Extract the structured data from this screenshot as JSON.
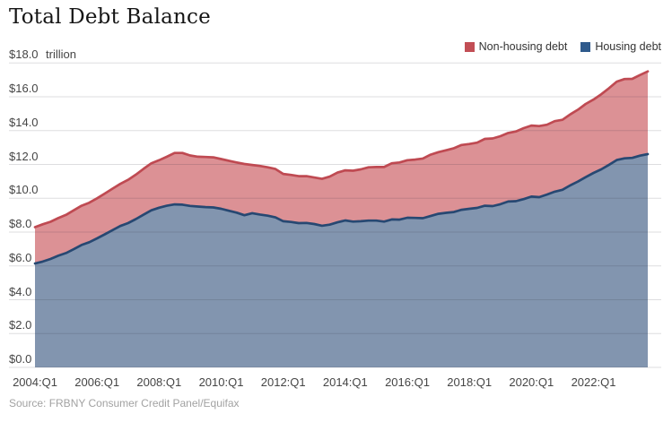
{
  "header": {
    "title": "Total Debt Balance"
  },
  "y_axis": {
    "unit_label": "trillion",
    "ticks": [
      {
        "label": "$18.0",
        "value": 18
      },
      {
        "label": "$16.0",
        "value": 16
      },
      {
        "label": "$14.0",
        "value": 14
      },
      {
        "label": "$12.0",
        "value": 12
      },
      {
        "label": "$10.0",
        "value": 10
      },
      {
        "label": "$8.0",
        "value": 8
      },
      {
        "label": "$6.0",
        "value": 6
      },
      {
        "label": "$4.0",
        "value": 4
      },
      {
        "label": "$2.0",
        "value": 2
      },
      {
        "label": "$0.0",
        "value": 0
      }
    ]
  },
  "x_axis": {
    "ticks": [
      {
        "label": "2004:Q1",
        "index": 0
      },
      {
        "label": "2006:Q1",
        "index": 8
      },
      {
        "label": "2008:Q1",
        "index": 16
      },
      {
        "label": "2010:Q1",
        "index": 24
      },
      {
        "label": "2012:Q1",
        "index": 32
      },
      {
        "label": "2014:Q1",
        "index": 40
      },
      {
        "label": "2016:Q1",
        "index": 48
      },
      {
        "label": "2018:Q1",
        "index": 56
      },
      {
        "label": "2020:Q1",
        "index": 64
      },
      {
        "label": "2022:Q1",
        "index": 72
      }
    ]
  },
  "legend": {
    "items": [
      {
        "label": "Non-housing debt",
        "color": "#c24e55"
      },
      {
        "label": "Housing debt",
        "color": "#2f5a8c"
      }
    ]
  },
  "source": "Source: FRBNY Consumer Credit Panel/Equifax",
  "chart_data": {
    "type": "area",
    "stacked": true,
    "title": "Total Debt Balance",
    "ylabel": "USD trillions",
    "ylim": [
      0,
      18
    ],
    "grid": true,
    "legend_position": "top-right",
    "x_start": "2004:Q1",
    "x_end": "2023:Q4",
    "x_frequency": "quarterly",
    "series": [
      {
        "name": "Housing debt",
        "fill": "#8295af",
        "line": "#274872",
        "values": [
          6.14,
          6.26,
          6.41,
          6.6,
          6.76,
          6.99,
          7.24,
          7.4,
          7.63,
          7.87,
          8.12,
          8.36,
          8.53,
          8.77,
          9.03,
          9.29,
          9.44,
          9.56,
          9.64,
          9.62,
          9.55,
          9.51,
          9.48,
          9.46,
          9.38,
          9.26,
          9.15,
          9.0,
          9.12,
          9.04,
          8.97,
          8.87,
          8.64,
          8.6,
          8.53,
          8.54,
          8.48,
          8.38,
          8.44,
          8.58,
          8.69,
          8.62,
          8.64,
          8.68,
          8.68,
          8.62,
          8.75,
          8.74,
          8.85,
          8.84,
          8.82,
          8.95,
          9.08,
          9.14,
          9.19,
          9.32,
          9.38,
          9.43,
          9.56,
          9.54,
          9.65,
          9.81,
          9.83,
          9.95,
          10.1,
          10.07,
          10.22,
          10.39,
          10.5,
          10.76,
          10.99,
          11.25,
          11.5,
          11.71,
          11.98,
          12.26,
          12.36,
          12.39,
          12.52,
          12.61
        ]
      },
      {
        "name": "Non-housing debt",
        "fill": "#dc9195",
        "line": "#bf4a52",
        "values": [
          2.15,
          2.2,
          2.2,
          2.23,
          2.26,
          2.3,
          2.32,
          2.34,
          2.37,
          2.41,
          2.45,
          2.49,
          2.56,
          2.63,
          2.71,
          2.78,
          2.81,
          2.9,
          3.04,
          3.06,
          2.98,
          2.95,
          2.96,
          2.96,
          2.94,
          2.96,
          2.97,
          3.03,
          2.85,
          2.87,
          2.86,
          2.86,
          2.8,
          2.78,
          2.78,
          2.77,
          2.75,
          2.77,
          2.84,
          2.94,
          2.96,
          3.01,
          3.07,
          3.15,
          3.17,
          3.23,
          3.32,
          3.38,
          3.4,
          3.45,
          3.53,
          3.63,
          3.65,
          3.7,
          3.77,
          3.83,
          3.83,
          3.86,
          3.95,
          4.0,
          4.02,
          4.05,
          4.12,
          4.2,
          4.2,
          4.2,
          4.13,
          4.17,
          4.14,
          4.2,
          4.25,
          4.33,
          4.34,
          4.44,
          4.53,
          4.64,
          4.69,
          4.67,
          4.77,
          4.89
        ]
      }
    ],
    "total_debt": [
      8.29,
      8.46,
      8.61,
      8.83,
      9.02,
      9.29,
      9.56,
      9.74,
      10.0,
      10.28,
      10.57,
      10.85,
      11.09,
      11.4,
      11.74,
      12.07,
      12.25,
      12.46,
      12.68,
      12.68,
      12.53,
      12.46,
      12.44,
      12.42,
      12.32,
      12.22,
      12.12,
      12.03,
      11.97,
      11.91,
      11.83,
      11.73,
      11.44,
      11.38,
      11.31,
      11.31,
      11.23,
      11.15,
      11.28,
      11.52,
      11.65,
      11.63,
      11.71,
      11.83,
      11.85,
      11.85,
      12.07,
      12.12,
      12.25,
      12.29,
      12.35,
      12.58,
      12.73,
      12.84,
      12.96,
      13.15,
      13.21,
      13.29,
      13.51,
      13.54,
      13.67,
      13.86,
      13.95,
      14.15,
      14.3,
      14.27,
      14.35,
      14.56,
      14.64,
      14.96,
      15.24,
      15.58,
      15.84,
      16.15,
      16.51,
      16.9,
      17.05,
      17.06,
      17.29,
      17.5
    ]
  }
}
